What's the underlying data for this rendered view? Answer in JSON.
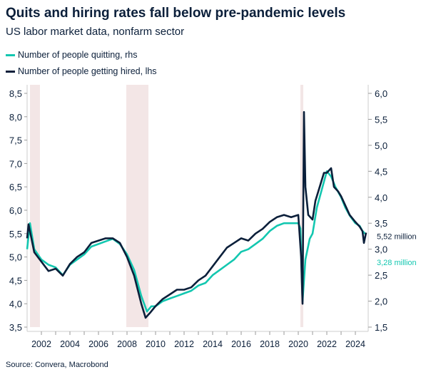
{
  "title": "Quits and hiring rates fall below pre-pandemic levels",
  "subtitle": "US labor market data, nonfarm sector",
  "source": "Source: Convera, Macrobond",
  "colors": {
    "quits": "#13c7b0",
    "hires": "#0b1f3a",
    "recession": "#f3e6e6",
    "axis": "#cccccc"
  },
  "chart_data": {
    "type": "line",
    "title": "Quits and hiring rates fall below pre-pandemic levels",
    "subtitle": "US labor market data, nonfarm sector",
    "legend_placement": "top-left",
    "grid": false,
    "xlim": [
      2001,
      2024.9
    ],
    "xticks": [
      "2002",
      "2004",
      "2006",
      "2008",
      "2010",
      "2012",
      "2014",
      "2016",
      "2018",
      "2020",
      "2022",
      "2024"
    ],
    "y_left": {
      "lim": [
        3.5,
        8.5
      ],
      "ticks": [
        "3,5",
        "4,0",
        "4,5",
        "5,0",
        "5,5",
        "6,0",
        "6,5",
        "7,0",
        "7,5",
        "8,0",
        "8,5"
      ]
    },
    "y_right": {
      "lim": [
        1.5,
        6.0
      ],
      "ticks": [
        "1,5",
        "2,0",
        "2,5",
        "3,0",
        "3,5",
        "4,0",
        "4,5",
        "5,0",
        "5,5",
        "6,0"
      ]
    },
    "recessions": [
      [
        2001.2,
        2001.9
      ],
      [
        2007.95,
        2009.5
      ],
      [
        2020.15,
        2020.35
      ]
    ],
    "series": [
      {
        "name": "Number of people quitting, rhs",
        "axis": "right",
        "end_label": "3,28 million",
        "x": [
          2001.0,
          2001.2,
          2001.5,
          2002,
          2002.5,
          2003,
          2003.5,
          2004,
          2004.5,
          2005,
          2005.5,
          2006,
          2006.5,
          2007,
          2007.5,
          2008,
          2008.5,
          2009,
          2009.4,
          2009.7,
          2010,
          2010.5,
          2011,
          2011.5,
          2012,
          2012.5,
          2013,
          2013.5,
          2014,
          2014.5,
          2015,
          2015.5,
          2016,
          2016.5,
          2017,
          2017.5,
          2018,
          2018.5,
          2019,
          2019.5,
          2020.0,
          2020.15,
          2020.3,
          2020.5,
          2020.8,
          2021.0,
          2021.3,
          2021.6,
          2021.9,
          2022.0,
          2022.3,
          2022.6,
          2023.0,
          2023.3,
          2023.6,
          2024.0,
          2024.3,
          2024.5,
          2024.75
        ],
        "y": [
          3.0,
          3.5,
          3.0,
          2.8,
          2.7,
          2.65,
          2.5,
          2.7,
          2.8,
          2.9,
          3.05,
          3.1,
          3.15,
          3.2,
          3.1,
          2.9,
          2.6,
          2.1,
          1.8,
          1.9,
          1.9,
          2.0,
          2.05,
          2.1,
          2.15,
          2.2,
          2.3,
          2.35,
          2.5,
          2.6,
          2.7,
          2.8,
          2.95,
          3.0,
          3.1,
          3.2,
          3.35,
          3.45,
          3.5,
          3.5,
          3.5,
          3.4,
          2.0,
          2.8,
          3.2,
          3.3,
          3.8,
          4.1,
          4.4,
          4.5,
          4.4,
          4.2,
          4.0,
          3.8,
          3.65,
          3.5,
          3.45,
          3.35,
          3.28
        ]
      },
      {
        "name": "Number of people getting hired, lhs",
        "axis": "left",
        "end_label": "5,52 million",
        "x": [
          2001.0,
          2001.1,
          2001.5,
          2002,
          2002.5,
          2003,
          2003.5,
          2004,
          2004.5,
          2005,
          2005.5,
          2006,
          2006.5,
          2007,
          2007.5,
          2008,
          2008.5,
          2009,
          2009.3,
          2009.6,
          2010,
          2010.5,
          2011,
          2011.5,
          2012,
          2012.5,
          2013,
          2013.5,
          2014,
          2014.5,
          2015,
          2015.5,
          2016,
          2016.5,
          2017,
          2017.5,
          2018,
          2018.5,
          2019,
          2019.5,
          2020.0,
          2020.2,
          2020.3,
          2020.4,
          2020.5,
          2020.7,
          2021.0,
          2021.2,
          2021.5,
          2021.8,
          2022.0,
          2022.3,
          2022.5,
          2022.8,
          2023.0,
          2023.3,
          2023.6,
          2024.0,
          2024.3,
          2024.5,
          2024.6,
          2024.75
        ],
        "y": [
          5.4,
          5.7,
          5.1,
          4.9,
          4.7,
          4.75,
          4.6,
          4.85,
          5.0,
          5.1,
          5.3,
          5.35,
          5.4,
          5.4,
          5.3,
          5.0,
          4.6,
          4.0,
          3.7,
          3.8,
          3.95,
          4.1,
          4.2,
          4.3,
          4.3,
          4.35,
          4.5,
          4.6,
          4.8,
          5.0,
          5.2,
          5.3,
          5.4,
          5.35,
          5.5,
          5.6,
          5.75,
          5.85,
          5.9,
          5.85,
          5.9,
          5.0,
          4.0,
          8.1,
          6.5,
          5.9,
          5.8,
          6.2,
          6.5,
          6.8,
          6.8,
          6.9,
          6.5,
          6.4,
          6.3,
          6.1,
          5.9,
          5.75,
          5.65,
          5.55,
          5.3,
          5.52
        ]
      }
    ]
  }
}
